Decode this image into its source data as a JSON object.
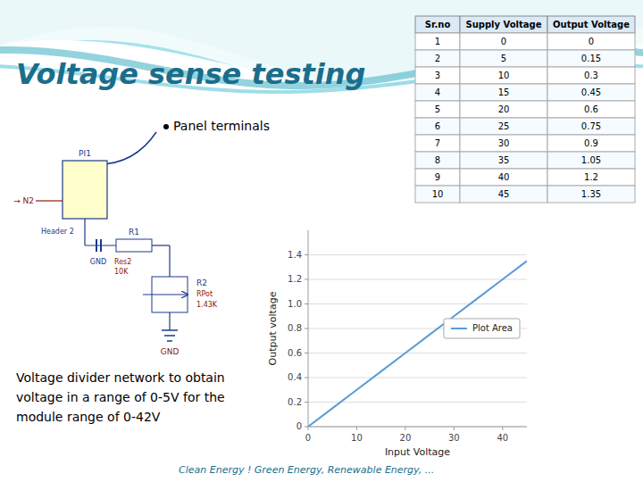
{
  "title": "Voltage sense testing",
  "annotations": [
    "Panel terminals",
    "Voltage divider network to obtain\nvoltage in a range of 0-5V for the\nmodule range of 0-42V",
    "Clean Energy ! Green Energy, Renewable Energy, ...",
    "PI1",
    "→ N2",
    "GND",
    "Header 2",
    "R1",
    "Res2",
    "10K",
    "R2",
    "RPot",
    "1.43K",
    "GND"
  ],
  "chart_data": [
    {
      "type": "line",
      "x": [
        0,
        5,
        10,
        15,
        20,
        25,
        30,
        35,
        40,
        45
      ],
      "series": [
        {
          "name": "Plot Area",
          "color": "#5b9bd5",
          "values": [
            0,
            0.15,
            0.3,
            0.45,
            0.6,
            0.75,
            0.9,
            1.05,
            1.2,
            1.35
          ]
        }
      ],
      "xlabel": "Input Voltage",
      "ylabel": "Output voltage",
      "xlim": [
        0,
        45
      ],
      "ylim": [
        0,
        1.6
      ],
      "xticks": [
        0,
        10,
        20,
        30,
        40
      ],
      "yticks": [
        0,
        0.2,
        0.4,
        0.6,
        0.8,
        {
          "value": 1,
          "label": "1.0"
        },
        1.2,
        1.4
      ],
      "grid": true,
      "legend": "center right"
    },
    {
      "type": "table",
      "columns": [
        "Sr.no",
        "Supply Voltage",
        "Output Voltage"
      ],
      "rows": [
        [
          1,
          0,
          0
        ],
        [
          2,
          5,
          0.15
        ],
        [
          3,
          10,
          0.3
        ],
        [
          4,
          15,
          0.45
        ],
        [
          5,
          20,
          0.6
        ],
        [
          6,
          25,
          0.75
        ],
        [
          7,
          30,
          0.9
        ],
        [
          8,
          35,
          1.05
        ],
        [
          9,
          40,
          1.2
        ],
        [
          10,
          45,
          1.35
        ]
      ]
    }
  ]
}
